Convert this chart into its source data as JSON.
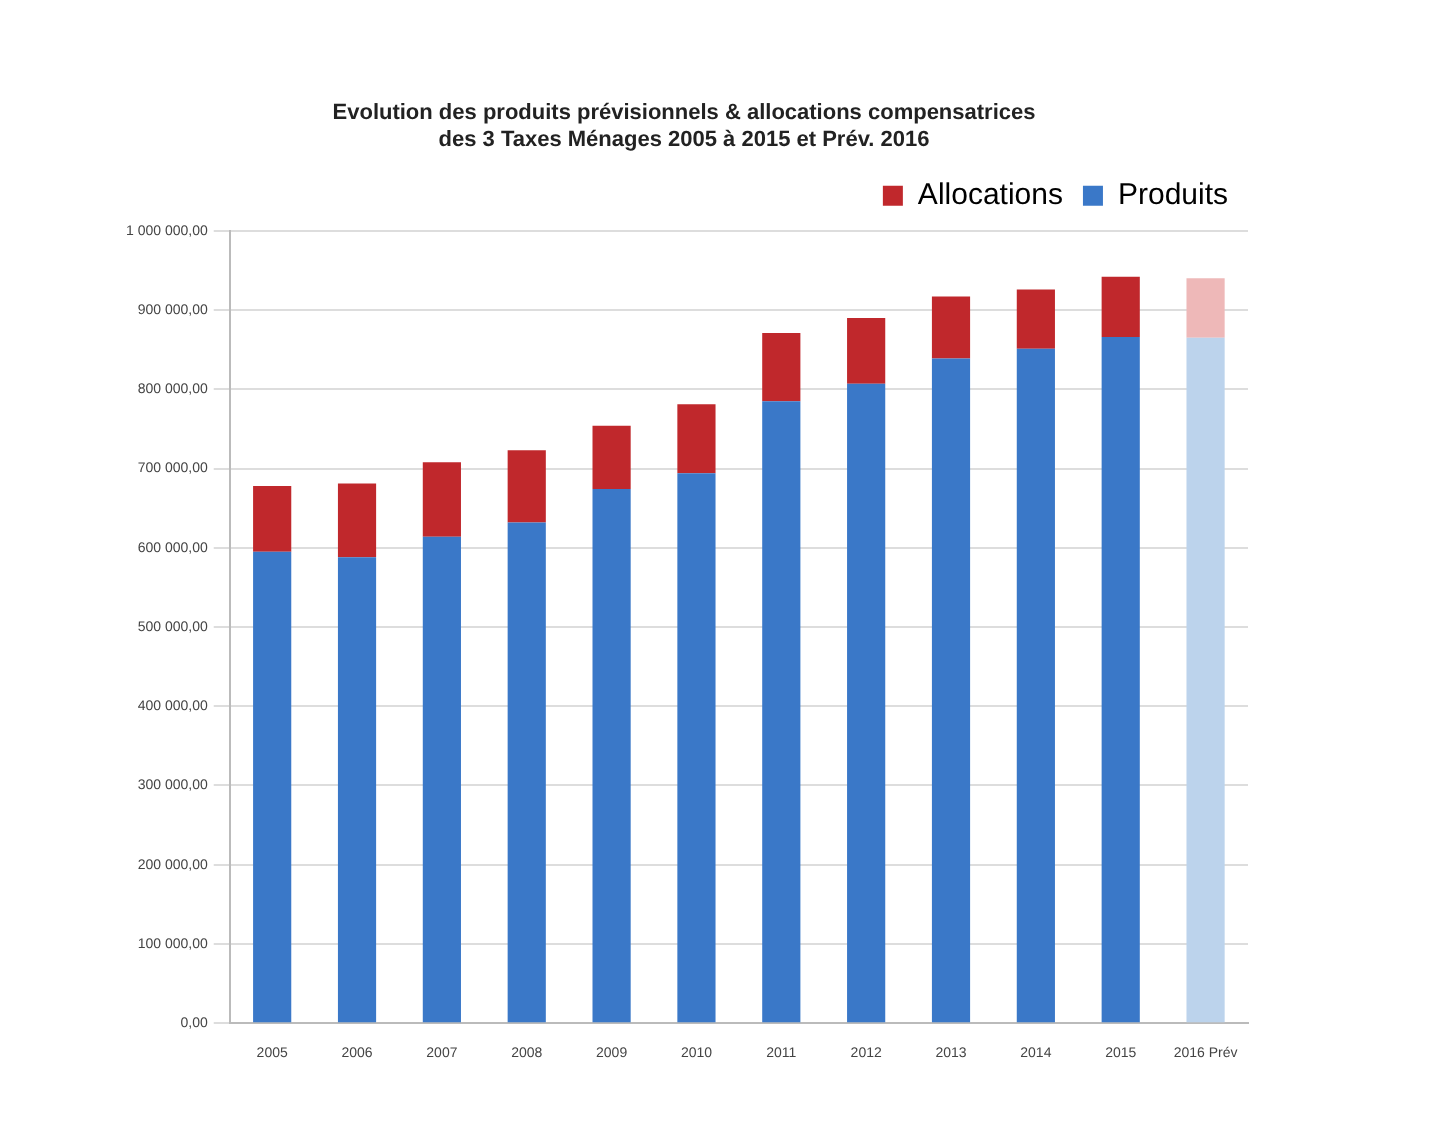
{
  "chart_data": {
    "type": "bar",
    "title": "Evolution des produits prévisionnels & allocations compensatrices\ndes 3 Taxes Ménages 2005 à 2015 et Prév. 2016",
    "stacked": true,
    "legend": "top right",
    "grid": "y",
    "categories": [
      "2005",
      "2006",
      "2007",
      "2008",
      "2009",
      "2010",
      "2011",
      "2012",
      "2013",
      "2014",
      "2015",
      "2016 Prév"
    ],
    "series": [
      {
        "name": "Produits",
        "color": "#3a78c8",
        "colors": [
          "#3a78c8",
          "#3a78c8",
          "#3a78c8",
          "#3a78c8",
          "#3a78c8",
          "#3a78c8",
          "#3a78c8",
          "#3a78c8",
          "#3a78c8",
          "#3a78c8",
          "#3a78c8",
          "#bcd3ec"
        ],
        "values": [
          595000,
          588000,
          614000,
          632000,
          674000,
          694000,
          785000,
          807000,
          839000,
          851000,
          866000,
          865000
        ]
      },
      {
        "name": "Allocations",
        "color": "#c0282c",
        "colors": [
          "#c0282c",
          "#c0282c",
          "#c0282c",
          "#c0282c",
          "#c0282c",
          "#c0282c",
          "#c0282c",
          "#c0282c",
          "#c0282c",
          "#c0282c",
          "#c0282c",
          "#eeb8b8"
        ],
        "values": [
          83000,
          93000,
          94000,
          91000,
          80000,
          87000,
          86000,
          83000,
          78000,
          75000,
          76000,
          75000
        ]
      }
    ],
    "ylim": [
      0,
      1000000
    ],
    "yticks": [
      {
        "value": 0,
        "label": "0,00"
      },
      {
        "value": 100000,
        "label": "100 000,00"
      },
      {
        "value": 200000,
        "label": "200 000,00"
      },
      {
        "value": 300000,
        "label": "300 000,00"
      },
      {
        "value": 400000,
        "label": "400 000,00"
      },
      {
        "value": 500000,
        "label": "500 000,00"
      },
      {
        "value": 600000,
        "label": "600 000,00"
      },
      {
        "value": 700000,
        "label": "700 000,00"
      },
      {
        "value": 800000,
        "label": "800 000,00"
      },
      {
        "value": 900000,
        "label": "900 000,00"
      },
      {
        "value": 1000000,
        "label": "1 000 000,00"
      }
    ]
  }
}
